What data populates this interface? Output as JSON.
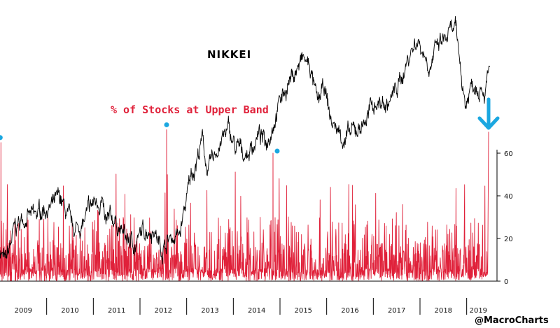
{
  "chart_data": {
    "type": "line",
    "title": "NIKKEI",
    "subtitle": "% of Stocks at Upper Band",
    "credit": "@MacroCharts",
    "x_axis": {
      "labels": [
        "2009",
        "2010",
        "2011",
        "2012",
        "2013",
        "2014",
        "2015",
        "2016",
        "2017",
        "2018",
        "2019"
      ],
      "range": [
        2009.0,
        2019.5
      ]
    },
    "y_axis_right": {
      "ticks": [
        "0",
        "20",
        "40",
        "60"
      ],
      "range": [
        0,
        65
      ]
    },
    "nikkei_anchors": [
      [
        2009.0,
        0.1
      ],
      [
        2009.12,
        0.02
      ],
      [
        2009.3,
        0.18
      ],
      [
        2009.55,
        0.26
      ],
      [
        2009.75,
        0.24
      ],
      [
        2009.95,
        0.3
      ],
      [
        2010.1,
        0.29
      ],
      [
        2010.3,
        0.33
      ],
      [
        2010.55,
        0.18
      ],
      [
        2010.8,
        0.22
      ],
      [
        2011.0,
        0.31
      ],
      [
        2011.18,
        0.34
      ],
      [
        2011.25,
        0.2
      ],
      [
        2011.45,
        0.24
      ],
      [
        2011.7,
        0.14
      ],
      [
        2011.9,
        0.12
      ],
      [
        2012.15,
        0.2
      ],
      [
        2012.3,
        0.2
      ],
      [
        2012.45,
        0.1
      ],
      [
        2012.65,
        0.15
      ],
      [
        2012.85,
        0.16
      ],
      [
        2013.1,
        0.45
      ],
      [
        2013.35,
        0.62
      ],
      [
        2013.45,
        0.45
      ],
      [
        2013.7,
        0.6
      ],
      [
        2013.9,
        0.66
      ],
      [
        2014.05,
        0.57
      ],
      [
        2014.3,
        0.55
      ],
      [
        2014.55,
        0.64
      ],
      [
        2014.7,
        0.6
      ],
      [
        2014.95,
        0.78
      ],
      [
        2015.2,
        0.9
      ],
      [
        2015.5,
        1.0
      ],
      [
        2015.65,
        0.96
      ],
      [
        2015.8,
        0.78
      ],
      [
        2015.95,
        0.86
      ],
      [
        2016.1,
        0.7
      ],
      [
        2016.4,
        0.62
      ],
      [
        2016.6,
        0.65
      ],
      [
        2016.85,
        0.72
      ],
      [
        2017.05,
        0.8
      ],
      [
        2017.3,
        0.78
      ],
      [
        2017.55,
        0.88
      ],
      [
        2017.8,
        1.04
      ],
      [
        2017.95,
        1.1
      ],
      [
        2018.2,
        0.98
      ],
      [
        2018.4,
        1.06
      ],
      [
        2018.75,
        1.14
      ],
      [
        2018.85,
        1.0
      ],
      [
        2018.97,
        0.78
      ],
      [
        2019.1,
        0.88
      ],
      [
        2019.3,
        0.9
      ],
      [
        2019.4,
        0.86
      ],
      [
        2019.5,
        0.95
      ]
    ],
    "highlighted_peaks": [
      {
        "x": 2009.02,
        "y": 65
      },
      {
        "x": 2012.57,
        "y": 71
      },
      {
        "x": 2014.85,
        "y": 60
      }
    ],
    "latest_value": {
      "x": 2019.47,
      "y": 70
    },
    "colors": {
      "nikkei": "#000000",
      "stocks_at_upper_band": "#e0213a",
      "peak_marker": "#1ba7e0",
      "arrow": "#1ba7e0"
    }
  }
}
